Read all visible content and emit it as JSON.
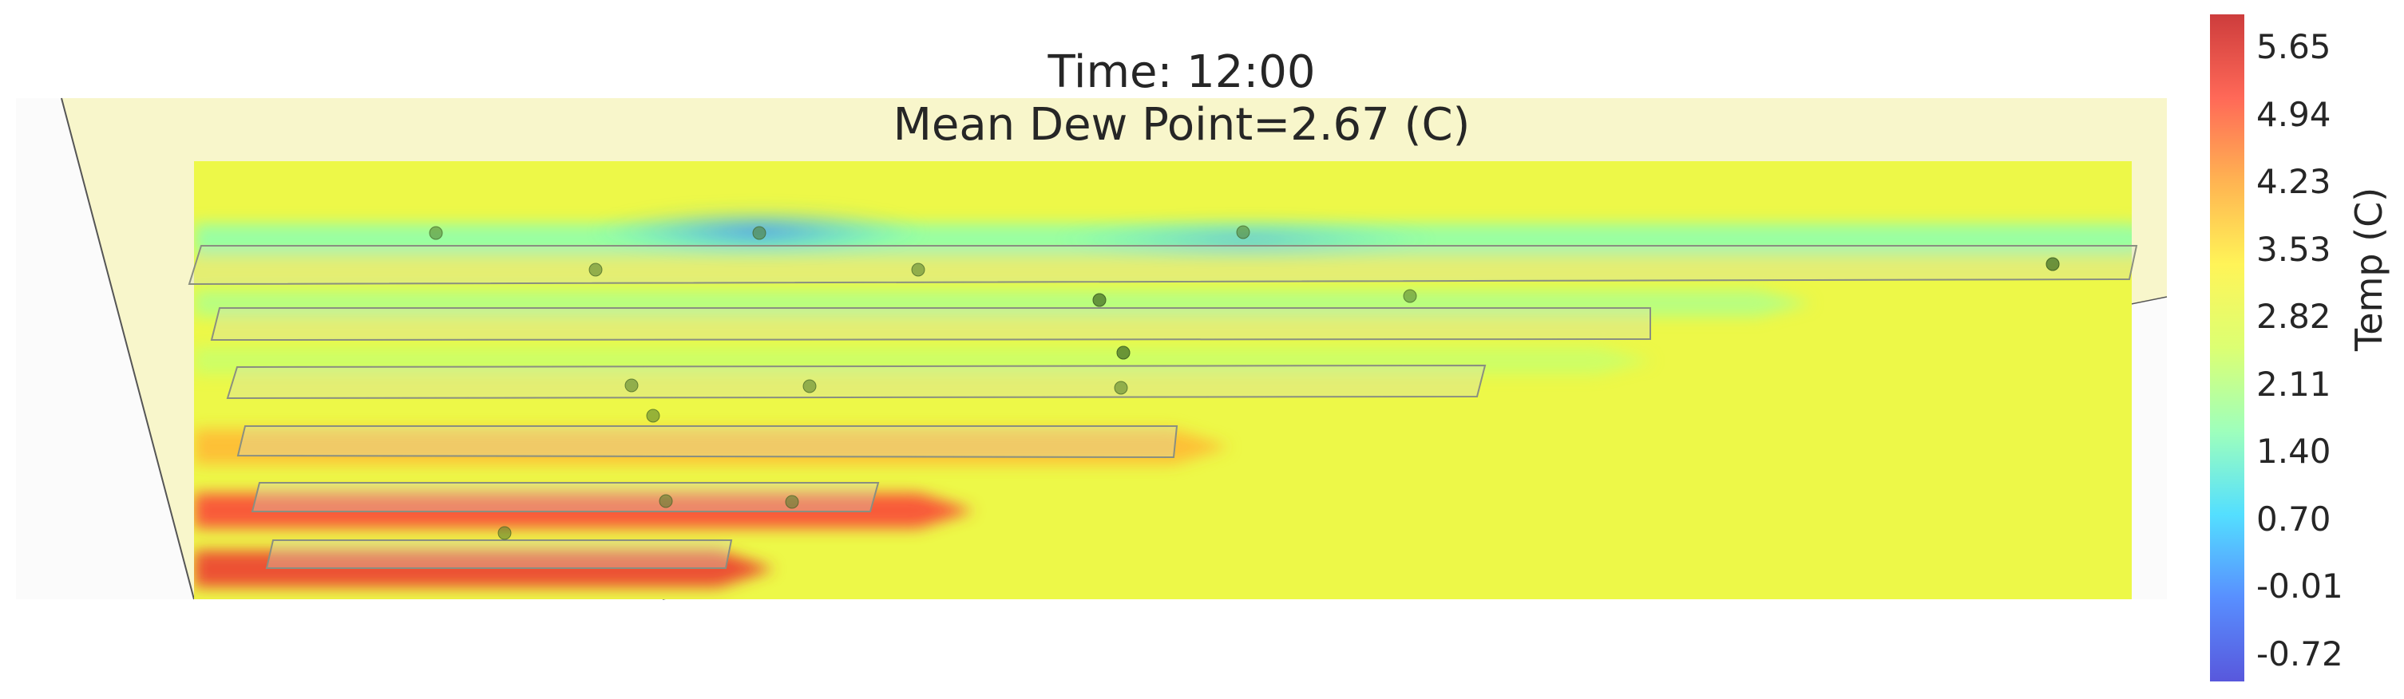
{
  "chart_data": {
    "type": "heatmap",
    "title_line1": "Time: 12:00",
    "title_line2": "Mean Dew Point=2.67 (C)",
    "colorbar": {
      "label": "Temp (C)",
      "ticks": [
        "5.65",
        "4.94",
        "4.23",
        "3.53",
        "2.82",
        "2.11",
        "1.40",
        "0.70",
        "-0.01",
        "-0.72"
      ],
      "range": [
        -1.1,
        6.0
      ],
      "colormap": [
        "#3a3ad6",
        "#3b7bff",
        "#35d9ff",
        "#8dffb0",
        "#d6ff5a",
        "#fff23a",
        "#ffa633",
        "#ff4e3a",
        "#c41a1a"
      ]
    },
    "background_value": 2.95,
    "bands": [
      {
        "row": 1,
        "value": 1.6
      },
      {
        "row": 2,
        "value": 2.0
      },
      {
        "row": 3,
        "value": 2.3
      },
      {
        "row": 4,
        "value": 4.0
      },
      {
        "row": 5,
        "value": 5.2
      },
      {
        "row": 6,
        "value": 5.4
      }
    ],
    "sensor_count": 19
  }
}
